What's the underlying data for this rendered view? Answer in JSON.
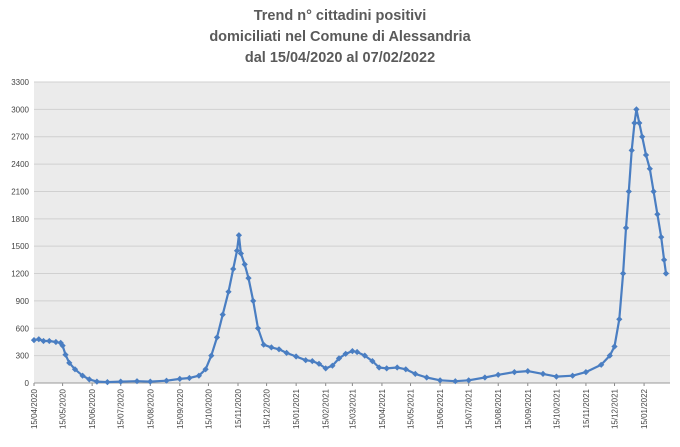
{
  "chart_data": {
    "type": "line",
    "title_lines": [
      "Trend n° cittadini positivi",
      "domiciliati nel Comune di Alessandria",
      "dal 15/04/2020 al 07/02/2022"
    ],
    "xlabel": "",
    "ylabel": "",
    "ylim": [
      0,
      3300
    ],
    "y_ticks": [
      0,
      300,
      600,
      900,
      1200,
      1500,
      1800,
      2100,
      2400,
      2700,
      3000,
      3300
    ],
    "x_ticks": [
      {
        "label": "15/04/2020",
        "date": "2020-04-15"
      },
      {
        "label": "15/05/2020",
        "date": "2020-05-15"
      },
      {
        "label": "15/06/2020",
        "date": "2020-06-15"
      },
      {
        "label": "15/07/2020",
        "date": "2020-07-15"
      },
      {
        "label": "15/08/2020",
        "date": "2020-08-15"
      },
      {
        "label": "15/09/2020",
        "date": "2020-09-15"
      },
      {
        "label": "15/10/2020",
        "date": "2020-10-15"
      },
      {
        "label": "15/11/2020",
        "date": "2020-11-15"
      },
      {
        "label": "15/12/2020",
        "date": "2020-12-15"
      },
      {
        "label": "15/01/2021",
        "date": "2021-01-15"
      },
      {
        "label": "15/02/2021",
        "date": "2021-02-15"
      },
      {
        "label": "15/03/2021",
        "date": "2021-03-15"
      },
      {
        "label": "15/04/2021",
        "date": "2021-04-15"
      },
      {
        "label": "15/05/2021",
        "date": "2021-05-15"
      },
      {
        "label": "15/06/2021",
        "date": "2021-06-15"
      },
      {
        "label": "15/07/2021",
        "date": "2021-07-15"
      },
      {
        "label": "15/08/2021",
        "date": "2021-08-15"
      },
      {
        "label": "15/09/2021",
        "date": "2021-09-15"
      },
      {
        "label": "15/10/2021",
        "date": "2021-10-15"
      },
      {
        "label": "15/11/2021",
        "date": "2021-11-15"
      },
      {
        "label": "15/12/2021",
        "date": "2021-12-15"
      },
      {
        "label": "15/01/2022",
        "date": "2022-01-15"
      }
    ],
    "x_start": "2020-04-15",
    "x_end": "2022-02-07",
    "grid": true,
    "legend": "none",
    "series": [
      {
        "color": "#4a7ec2",
        "points": [
          [
            "2020-04-15",
            470
          ],
          [
            "2020-04-20",
            480
          ],
          [
            "2020-04-25",
            460
          ],
          [
            "2020-05-01",
            460
          ],
          [
            "2020-05-08",
            450
          ],
          [
            "2020-05-13",
            440
          ],
          [
            "2020-05-15",
            410
          ],
          [
            "2020-05-18",
            310
          ],
          [
            "2020-05-22",
            220
          ],
          [
            "2020-05-28",
            150
          ],
          [
            "2020-06-05",
            80
          ],
          [
            "2020-06-12",
            40
          ],
          [
            "2020-06-20",
            15
          ],
          [
            "2020-07-01",
            10
          ],
          [
            "2020-07-15",
            15
          ],
          [
            "2020-08-01",
            20
          ],
          [
            "2020-08-15",
            15
          ],
          [
            "2020-09-01",
            25
          ],
          [
            "2020-09-15",
            45
          ],
          [
            "2020-09-25",
            55
          ],
          [
            "2020-10-05",
            80
          ],
          [
            "2020-10-12",
            150
          ],
          [
            "2020-10-18",
            300
          ],
          [
            "2020-10-24",
            500
          ],
          [
            "2020-10-30",
            750
          ],
          [
            "2020-11-05",
            1000
          ],
          [
            "2020-11-10",
            1250
          ],
          [
            "2020-11-14",
            1450
          ],
          [
            "2020-11-16",
            1620
          ],
          [
            "2020-11-18",
            1420
          ],
          [
            "2020-11-22",
            1300
          ],
          [
            "2020-11-26",
            1150
          ],
          [
            "2020-12-01",
            900
          ],
          [
            "2020-12-06",
            600
          ],
          [
            "2020-12-12",
            420
          ],
          [
            "2020-12-20",
            390
          ],
          [
            "2020-12-28",
            370
          ],
          [
            "2021-01-05",
            330
          ],
          [
            "2021-01-15",
            290
          ],
          [
            "2021-01-25",
            250
          ],
          [
            "2021-02-01",
            240
          ],
          [
            "2021-02-08",
            210
          ],
          [
            "2021-02-15",
            160
          ],
          [
            "2021-02-22",
            190
          ],
          [
            "2021-03-01",
            270
          ],
          [
            "2021-03-08",
            320
          ],
          [
            "2021-03-15",
            350
          ],
          [
            "2021-03-20",
            340
          ],
          [
            "2021-03-28",
            300
          ],
          [
            "2021-04-05",
            240
          ],
          [
            "2021-04-12",
            170
          ],
          [
            "2021-04-20",
            160
          ],
          [
            "2021-05-01",
            170
          ],
          [
            "2021-05-10",
            150
          ],
          [
            "2021-05-20",
            100
          ],
          [
            "2021-06-01",
            60
          ],
          [
            "2021-06-15",
            30
          ],
          [
            "2021-07-01",
            20
          ],
          [
            "2021-07-15",
            30
          ],
          [
            "2021-08-01",
            60
          ],
          [
            "2021-08-15",
            90
          ],
          [
            "2021-09-01",
            120
          ],
          [
            "2021-09-15",
            130
          ],
          [
            "2021-10-01",
            100
          ],
          [
            "2021-10-15",
            70
          ],
          [
            "2021-11-01",
            80
          ],
          [
            "2021-11-15",
            120
          ],
          [
            "2021-12-01",
            200
          ],
          [
            "2021-12-10",
            300
          ],
          [
            "2021-12-15",
            400
          ],
          [
            "2021-12-20",
            700
          ],
          [
            "2021-12-24",
            1200
          ],
          [
            "2021-12-27",
            1700
          ],
          [
            "2021-12-30",
            2100
          ],
          [
            "2022-01-02",
            2550
          ],
          [
            "2022-01-05",
            2850
          ],
          [
            "2022-01-07",
            3000
          ],
          [
            "2022-01-10",
            2850
          ],
          [
            "2022-01-13",
            2700
          ],
          [
            "2022-01-17",
            2500
          ],
          [
            "2022-01-21",
            2350
          ],
          [
            "2022-01-25",
            2100
          ],
          [
            "2022-01-29",
            1850
          ],
          [
            "2022-02-02",
            1600
          ],
          [
            "2022-02-05",
            1350
          ],
          [
            "2022-02-07",
            1200
          ]
        ]
      }
    ]
  }
}
